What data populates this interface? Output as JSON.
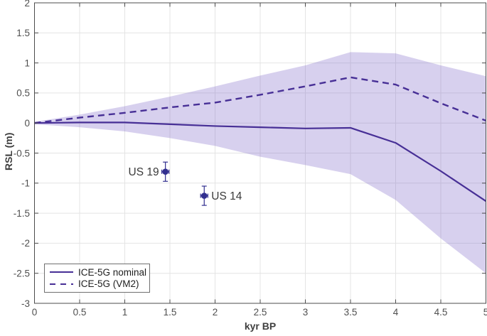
{
  "colors": {
    "line": "#472f96",
    "point": "#312e8f",
    "band_fill": "#7b64c8",
    "grid": "#e4e4e4",
    "axis": "#4c4c4c",
    "tick_text": "#4f4f4f",
    "label_text": "#3f3f3f",
    "annotation_text": "#3a3a3a"
  },
  "axes": {
    "x": {
      "label": "kyr BP",
      "ticks": [
        "0",
        "0.5",
        "1",
        "1.5",
        "2",
        "2.5",
        "3",
        "3.5",
        "4",
        "4.5",
        "5"
      ]
    },
    "y": {
      "label": "RSL (m)",
      "ticks": [
        "2",
        "1.5",
        "1",
        "0.5",
        "0",
        "-0.5",
        "-1",
        "-1.5",
        "-2",
        "-2.5",
        "-3"
      ]
    }
  },
  "legend": {
    "items": [
      {
        "label": "ICE-5G nominal",
        "style": "solid"
      },
      {
        "label": "ICE-5G (VM2)",
        "style": "dashed"
      }
    ]
  },
  "chart_data": {
    "type": "line",
    "x": [
      0,
      0.5,
      1,
      1.5,
      2,
      2.5,
      3,
      3.5,
      4,
      4.5,
      5
    ],
    "series": [
      {
        "name": "ICE-5G nominal",
        "style": "solid",
        "values": [
          0,
          0.01,
          0.01,
          -0.02,
          -0.05,
          -0.07,
          -0.09,
          -0.08,
          -0.33,
          -0.8,
          -1.3
        ]
      },
      {
        "name": "ICE-5G (VM2)",
        "style": "dashed",
        "values": [
          0,
          0.09,
          0.17,
          0.26,
          0.34,
          0.47,
          0.61,
          0.76,
          0.64,
          0.33,
          0.04
        ]
      }
    ],
    "band": {
      "name": "uncertainty-band",
      "upper": [
        0.02,
        0.14,
        0.28,
        0.44,
        0.61,
        0.79,
        0.96,
        1.18,
        1.16,
        0.96,
        0.78
      ],
      "lower": [
        -0.02,
        -0.07,
        -0.14,
        -0.25,
        -0.38,
        -0.56,
        -0.7,
        -0.85,
        -1.28,
        -1.92,
        -2.5
      ]
    },
    "points": [
      {
        "label": "US 19",
        "x": 1.45,
        "y": -0.81,
        "yerr": 0.16,
        "xerr": 0.04,
        "label_side": "left"
      },
      {
        "label": "US 14",
        "x": 1.88,
        "y": -1.21,
        "yerr": 0.16,
        "xerr": 0.04,
        "label_side": "right"
      }
    ],
    "xlabel": "kyr BP",
    "ylabel": "RSL (m)",
    "xlim": [
      0,
      5
    ],
    "ylim": [
      -3,
      2
    ],
    "tick_step": 0.5,
    "grid": true,
    "legend_position": "bottom-left"
  }
}
